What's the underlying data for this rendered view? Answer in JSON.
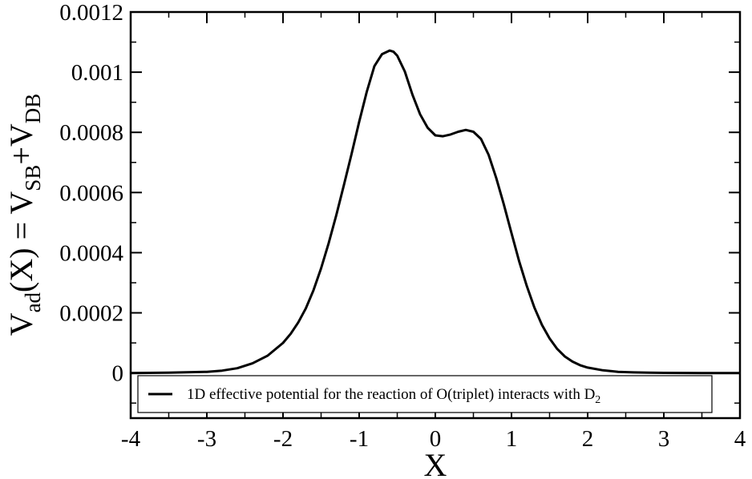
{
  "chart_data": {
    "type": "line",
    "title": "",
    "xlabel": "X",
    "ylabel": "V_ad(X) = V_SB + V_DB",
    "ylabel_parts": {
      "v1": "V",
      "sub1": "ad",
      "arg": "(X) = V",
      "sub2": "SB",
      "plus": "+V",
      "sub3": "DB"
    },
    "xlim": [
      -4,
      4
    ],
    "ylim": [
      -0.00015,
      0.0012
    ],
    "x_ticks": [
      -4,
      -3,
      -2,
      -1,
      0,
      1,
      2,
      3,
      4
    ],
    "x_tick_labels": [
      "-4",
      "-3",
      "-2",
      "-1",
      "0",
      "1",
      "2",
      "3",
      "4"
    ],
    "y_ticks": [
      0,
      0.0002,
      0.0004,
      0.0006,
      0.0008,
      0.001,
      0.0012
    ],
    "y_tick_labels": [
      "0",
      "0.0002",
      "0.0004",
      "0.0006",
      "0.0008",
      "0.001",
      "0.0012"
    ],
    "grid": false,
    "legend": {
      "placement": "bottom",
      "text": "1D effective potential for the reaction of O(triplet) interacts with D",
      "subscript": "2"
    },
    "series": [
      {
        "name": "1D effective potential for the reaction of O(triplet) interacts with D2",
        "color": "#000000",
        "x": [
          -4.0,
          -3.5,
          -3.0,
          -2.8,
          -2.6,
          -2.4,
          -2.2,
          -2.0,
          -1.9,
          -1.8,
          -1.7,
          -1.6,
          -1.5,
          -1.4,
          -1.3,
          -1.2,
          -1.1,
          -1.0,
          -0.9,
          -0.8,
          -0.7,
          -0.6,
          -0.55,
          -0.5,
          -0.4,
          -0.3,
          -0.2,
          -0.1,
          0.0,
          0.1,
          0.2,
          0.3,
          0.4,
          0.5,
          0.6,
          0.7,
          0.8,
          0.9,
          1.0,
          1.1,
          1.2,
          1.3,
          1.4,
          1.5,
          1.6,
          1.7,
          1.8,
          1.9,
          2.0,
          2.2,
          2.4,
          2.6,
          2.8,
          3.0,
          3.5,
          4.0
        ],
        "y": [
          0.0,
          1e-06,
          4e-06,
          8e-06,
          1.6e-05,
          3.2e-05,
          5.8e-05,
          0.0001,
          0.00013,
          0.000168,
          0.000215,
          0.000275,
          0.000348,
          0.000432,
          0.000525,
          0.000625,
          0.000728,
          0.000835,
          0.000935,
          0.00102,
          0.00106,
          0.001072,
          0.001068,
          0.001055,
          0.001002,
          0.000925,
          0.00086,
          0.000815,
          0.00079,
          0.000787,
          0.000793,
          0.000802,
          0.000808,
          0.000802,
          0.000778,
          0.000725,
          0.000648,
          0.00056,
          0.000465,
          0.000372,
          0.00029,
          0.000218,
          0.00016,
          0.000115,
          8e-05,
          5.5e-05,
          3.8e-05,
          2.6e-05,
          1.8e-05,
          9e-06,
          4e-06,
          2e-06,
          1e-06,
          5e-07,
          0.0,
          0.0
        ]
      }
    ]
  }
}
